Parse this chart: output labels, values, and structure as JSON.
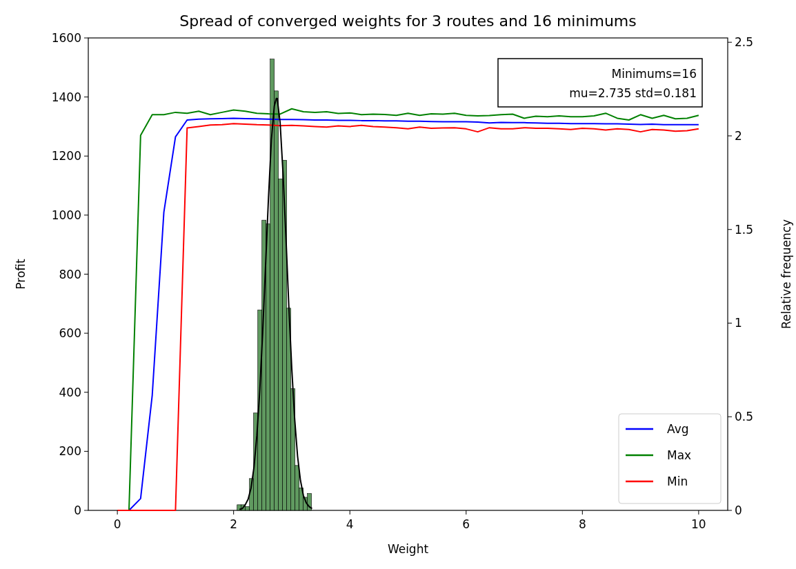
{
  "chart_data": {
    "type": "line",
    "title": "Spread of converged weights for 3 routes and 16 minimums",
    "xlabel": "Weight",
    "ylabel": "Profit",
    "y2label": "Relative frequency",
    "annotations": [
      "Minimums=16\nmu=2.735 std=0.181"
    ],
    "x": [
      0,
      0.2,
      0.4,
      0.6,
      0.8,
      1,
      1.2,
      1.4,
      1.6,
      1.8,
      2,
      2.2,
      2.4,
      2.6,
      2.8,
      3,
      3.2,
      3.4,
      3.6,
      3.8,
      4,
      4.2,
      4.4,
      4.6,
      4.8,
      5,
      5.2,
      5.4,
      5.6,
      5.8,
      6,
      6.2,
      6.4,
      6.6,
      6.8,
      7,
      7.2,
      7.4,
      7.6,
      7.8,
      8,
      8.2,
      8.4,
      8.6,
      8.8,
      9,
      9.2,
      9.4,
      9.6,
      9.8,
      10
    ],
    "series": [
      {
        "type": "histogram",
        "axis": "y2",
        "color": "#4f8f4f",
        "bins": [
          2.06,
          2.131,
          2.202,
          2.273,
          2.344,
          2.416,
          2.487,
          2.558,
          2.629,
          2.7,
          2.771,
          2.842,
          2.913,
          2.984,
          3.056,
          3.127,
          3.198,
          3.269,
          3.34
        ],
        "values": [
          0.03,
          0.03,
          0.02,
          0.17,
          0.52,
          1.07,
          1.55,
          1.53,
          2.41,
          2.24,
          1.77,
          1.87,
          1.08,
          0.65,
          0.24,
          0.12,
          0.07,
          0.09
        ]
      },
      {
        "name": "Avg",
        "color": "#0000ff",
        "values": [
          0,
          0,
          40,
          390,
          1010,
          1265,
          1322,
          1325,
          1326,
          1327,
          1328,
          1327,
          1326,
          1325,
          1324,
          1324,
          1323,
          1322,
          1322,
          1321,
          1321,
          1320,
          1320,
          1319,
          1319,
          1318,
          1318,
          1317,
          1316,
          1316,
          1316,
          1315,
          1312,
          1314,
          1313,
          1313,
          1312,
          1311,
          1311,
          1310,
          1310,
          1310,
          1309,
          1309,
          1308,
          1307,
          1308,
          1306,
          1306,
          1306,
          1306
        ]
      },
      {
        "name": "Max",
        "color": "#008000",
        "values": [
          0,
          0,
          1270,
          1340,
          1340,
          1348,
          1345,
          1352,
          1340,
          1348,
          1356,
          1352,
          1345,
          1343,
          1342,
          1360,
          1350,
          1348,
          1350,
          1344,
          1346,
          1340,
          1342,
          1341,
          1338,
          1345,
          1338,
          1343,
          1342,
          1345,
          1338,
          1336,
          1337,
          1340,
          1342,
          1328,
          1335,
          1333,
          1336,
          1333,
          1333,
          1336,
          1345,
          1328,
          1322,
          1340,
          1328,
          1338,
          1326,
          1328,
          1338
        ]
      },
      {
        "name": "Min",
        "color": "#ff0000",
        "values": [
          0,
          0,
          0,
          0,
          0,
          0,
          1295,
          1300,
          1305,
          1306,
          1310,
          1308,
          1306,
          1305,
          1303,
          1304,
          1302,
          1300,
          1298,
          1302,
          1300,
          1304,
          1300,
          1298,
          1296,
          1292,
          1298,
          1294,
          1295,
          1296,
          1292,
          1282,
          1296,
          1292,
          1292,
          1296,
          1294,
          1294,
          1292,
          1290,
          1294,
          1292,
          1288,
          1292,
          1290,
          1282,
          1290,
          1288,
          1284,
          1286,
          1292
        ]
      },
      {
        "type": "line",
        "axis": "y2",
        "color": "#000000",
        "x": [
          2.1,
          2.15,
          2.2,
          2.25,
          2.3,
          2.35,
          2.4,
          2.45,
          2.5,
          2.55,
          2.6,
          2.65,
          2.7,
          2.735,
          2.75,
          2.8,
          2.85,
          2.9,
          2.95,
          3,
          3.05,
          3.1,
          3.15,
          3.2,
          3.25,
          3.3,
          3.35
        ],
        "values": [
          0.005,
          0.01,
          0.03,
          0.06,
          0.12,
          0.23,
          0.4,
          0.64,
          0.95,
          1.31,
          1.67,
          1.98,
          2.16,
          2.2,
          2.2,
          2.07,
          1.8,
          1.46,
          1.09,
          0.76,
          0.49,
          0.29,
          0.16,
          0.08,
          0.04,
          0.02,
          0.01
        ]
      }
    ],
    "xlim": [
      -0.5,
      10.5
    ],
    "xticks": [
      0,
      2,
      4,
      6,
      8,
      10
    ],
    "ylim": [
      0,
      1600
    ],
    "yticks": [
      0,
      200,
      400,
      600,
      800,
      1000,
      1200,
      1400,
      1600
    ],
    "y2lim": [
      0,
      2.523
    ],
    "y2ticks": [
      0,
      0.5,
      1,
      1.5,
      2,
      2.5
    ],
    "legend": "bottom right",
    "grid": false
  }
}
